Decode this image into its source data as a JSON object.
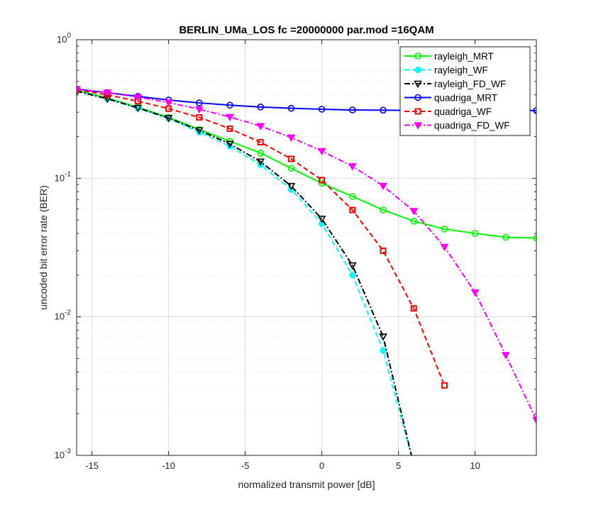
{
  "chart_data": {
    "type": "line",
    "title": "BERLIN_UMa_LOS fc =20000000 par.mod =16QAM",
    "xlabel": "normalized transmit power [dB]",
    "ylabel": "uncoded bit error rate (BER)",
    "xlim": [
      -16,
      14
    ],
    "ylim": [
      0.001,
      1
    ],
    "yscale": "log",
    "grid": true,
    "legend_position": "top-right",
    "x_ticks": [
      -15,
      -10,
      -5,
      0,
      5,
      10
    ],
    "x_tick_labels": [
      "-15",
      "-10",
      "-5",
      "0",
      "5",
      "10"
    ],
    "y_ticks": [
      1,
      0.1,
      0.01,
      0.001
    ],
    "y_tick_labels": [
      {
        "base": "10",
        "exp": "0"
      },
      {
        "base": "10",
        "exp": "-1"
      },
      {
        "base": "10",
        "exp": "-2"
      },
      {
        "base": "10",
        "exp": "-3"
      }
    ],
    "series": [
      {
        "name": "rayleigh_MRT",
        "color": "#00ff00",
        "dash": "solid",
        "marker": "circle",
        "x": [
          -16,
          -14,
          -12,
          -10,
          -8,
          -6,
          -4,
          -2,
          0,
          2,
          4,
          6,
          8,
          10,
          12,
          14
        ],
        "y": [
          0.43,
          0.38,
          0.325,
          0.275,
          0.225,
          0.185,
          0.152,
          0.118,
          0.092,
          0.074,
          0.059,
          0.049,
          0.043,
          0.04,
          0.0375,
          0.037
        ]
      },
      {
        "name": "rayleigh_WF",
        "color": "#00ffff",
        "dash": "dashed",
        "marker": "circle-filled",
        "x": [
          -16,
          -14,
          -12,
          -10,
          -8,
          -6,
          -4,
          -2,
          0,
          2,
          4,
          6
        ],
        "y": [
          0.425,
          0.375,
          0.32,
          0.27,
          0.215,
          0.17,
          0.125,
          0.083,
          0.047,
          0.02,
          0.0057,
          0.00085
        ]
      },
      {
        "name": "rayleigh_FD_WF",
        "color": "#000000",
        "dash": "dashdot",
        "marker": "triangle-down",
        "x": [
          -16,
          -14,
          -12,
          -10,
          -8,
          -6,
          -4,
          -2,
          0,
          2,
          4,
          6
        ],
        "y": [
          0.425,
          0.375,
          0.322,
          0.272,
          0.222,
          0.177,
          0.132,
          0.088,
          0.051,
          0.0235,
          0.0072,
          0.00085
        ]
      },
      {
        "name": "quadriga_MRT",
        "color": "#0000ff",
        "dash": "solid",
        "marker": "circle",
        "x": [
          -16,
          -14,
          -12,
          -10,
          -8,
          -6,
          -4,
          -2,
          0,
          2,
          4,
          6,
          8,
          10,
          12,
          14
        ],
        "y": [
          0.44,
          0.415,
          0.39,
          0.367,
          0.35,
          0.337,
          0.327,
          0.32,
          0.315,
          0.311,
          0.31,
          0.309,
          0.308,
          0.308,
          0.308,
          0.308
        ]
      },
      {
        "name": "quadriga_WF",
        "color": "#ff0000",
        "dash": "dashed",
        "marker": "square",
        "x": [
          -16,
          -14,
          -12,
          -10,
          -8,
          -6,
          -4,
          -2,
          0,
          2,
          4,
          6,
          8
        ],
        "y": [
          0.435,
          0.4,
          0.36,
          0.318,
          0.275,
          0.228,
          0.182,
          0.138,
          0.097,
          0.059,
          0.03,
          0.0115,
          0.0032
        ]
      },
      {
        "name": "quadriga_FD_WF",
        "color": "#ff00ff",
        "dash": "dashdot",
        "marker": "triangle-down-filled",
        "x": [
          -16,
          -14,
          -12,
          -10,
          -8,
          -6,
          -4,
          -2,
          0,
          2,
          4,
          6,
          8,
          10,
          12,
          14
        ],
        "y": [
          0.44,
          0.415,
          0.385,
          0.352,
          0.315,
          0.277,
          0.238,
          0.197,
          0.157,
          0.122,
          0.088,
          0.058,
          0.032,
          0.015,
          0.0053,
          0.0018
        ]
      }
    ]
  }
}
